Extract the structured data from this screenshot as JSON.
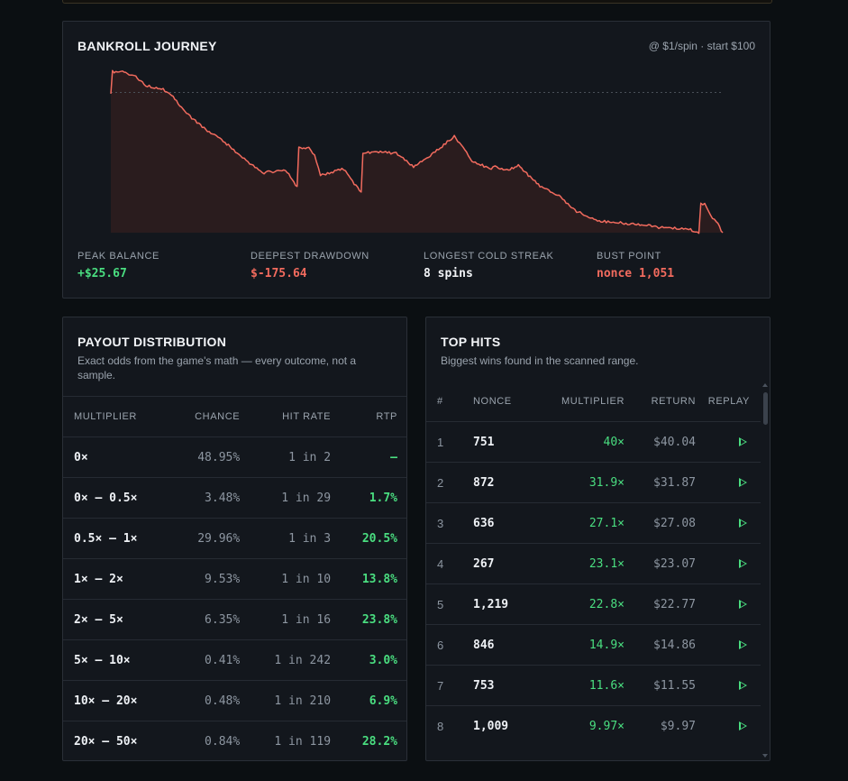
{
  "bankroll": {
    "title": "BANKROLL JOURNEY",
    "note": "@ $1/spin · start $100",
    "stats": [
      {
        "label": "PEAK BALANCE",
        "value": "+$25.67",
        "tone": "green"
      },
      {
        "label": "DEEPEST DRAWDOWN",
        "value": "$-175.64",
        "tone": "red"
      },
      {
        "label": "LONGEST COLD STREAK",
        "value": "8 spins",
        "tone": "white"
      },
      {
        "label": "BUST POINT",
        "value": "nonce 1,051",
        "tone": "red"
      }
    ]
  },
  "chart_data": {
    "type": "area",
    "title": "BANKROLL JOURNEY",
    "xlabel": "",
    "ylabel": "",
    "x_range": [
      0,
      1051
    ],
    "ylim": [
      -176,
      30
    ],
    "baseline": 0,
    "series": [
      {
        "x": [
          0,
          20,
          40,
          60,
          90,
          110,
          130,
          160,
          190,
          220,
          260,
          300,
          320,
          340,
          350,
          360,
          400,
          430,
          460,
          490,
          520,
          540,
          560,
          590,
          620,
          650,
          660,
          680,
          700,
          720,
          740,
          770,
          800,
          830,
          860,
          900,
          950,
          990,
          1010,
          1020,
          1030,
          1040,
          1051
        ],
        "values": [
          0,
          26,
          21,
          9,
          4,
          -8,
          -26,
          -45,
          -59,
          -78,
          -101,
          -97,
          -119,
          -70,
          -79,
          -104,
          -96,
          -126,
          -75,
          -76,
          -94,
          -83,
          -73,
          -55,
          -85,
          -96,
          -93,
          -98,
          -92,
          -106,
          -119,
          -130,
          -149,
          -160,
          -163,
          -165,
          -170,
          -171,
          -176,
          -140,
          -155,
          -162,
          -176
        ]
      }
    ],
    "colors": {
      "line": "#f26b5e",
      "fill": "#2a1c1e"
    },
    "grid": false
  },
  "distribution": {
    "title": "PAYOUT DISTRIBUTION",
    "subtitle": "Exact odds from the game's math — every outcome, not a sample.",
    "columns": [
      "MULTIPLIER",
      "CHANCE",
      "HIT RATE",
      "RTP"
    ],
    "rows": [
      {
        "multiplier": "0×",
        "chance": "48.95%",
        "hit_rate": "1 in 2",
        "rtp": "—"
      },
      {
        "multiplier": "0× – 0.5×",
        "chance": "3.48%",
        "hit_rate": "1 in 29",
        "rtp": "1.7%"
      },
      {
        "multiplier": "0.5× – 1×",
        "chance": "29.96%",
        "hit_rate": "1 in 3",
        "rtp": "20.5%"
      },
      {
        "multiplier": "1× – 2×",
        "chance": "9.53%",
        "hit_rate": "1 in 10",
        "rtp": "13.8%"
      },
      {
        "multiplier": "2× – 5×",
        "chance": "6.35%",
        "hit_rate": "1 in 16",
        "rtp": "23.8%"
      },
      {
        "multiplier": "5× – 10×",
        "chance": "0.41%",
        "hit_rate": "1 in 242",
        "rtp": "3.0%"
      },
      {
        "multiplier": "10× – 20×",
        "chance": "0.48%",
        "hit_rate": "1 in 210",
        "rtp": "6.9%"
      },
      {
        "multiplier": "20× – 50×",
        "chance": "0.84%",
        "hit_rate": "1 in 119",
        "rtp": "28.2%"
      }
    ]
  },
  "top_hits": {
    "title": "TOP HITS",
    "subtitle": "Biggest wins found in the scanned range.",
    "columns": [
      "#",
      "NONCE",
      "MULTIPLIER",
      "RETURN",
      "REPLAY"
    ],
    "rows": [
      {
        "rank": "1",
        "nonce": "751",
        "multiplier": "40×",
        "return": "$40.04"
      },
      {
        "rank": "2",
        "nonce": "872",
        "multiplier": "31.9×",
        "return": "$31.87"
      },
      {
        "rank": "3",
        "nonce": "636",
        "multiplier": "27.1×",
        "return": "$27.08"
      },
      {
        "rank": "4",
        "nonce": "267",
        "multiplier": "23.1×",
        "return": "$23.07"
      },
      {
        "rank": "5",
        "nonce": "1,219",
        "multiplier": "22.8×",
        "return": "$22.77"
      },
      {
        "rank": "6",
        "nonce": "846",
        "multiplier": "14.9×",
        "return": "$14.86"
      },
      {
        "rank": "7",
        "nonce": "753",
        "multiplier": "11.6×",
        "return": "$11.55"
      },
      {
        "rank": "8",
        "nonce": "1,009",
        "multiplier": "9.97×",
        "return": "$9.97"
      }
    ],
    "replay_icon": "play-icon"
  }
}
